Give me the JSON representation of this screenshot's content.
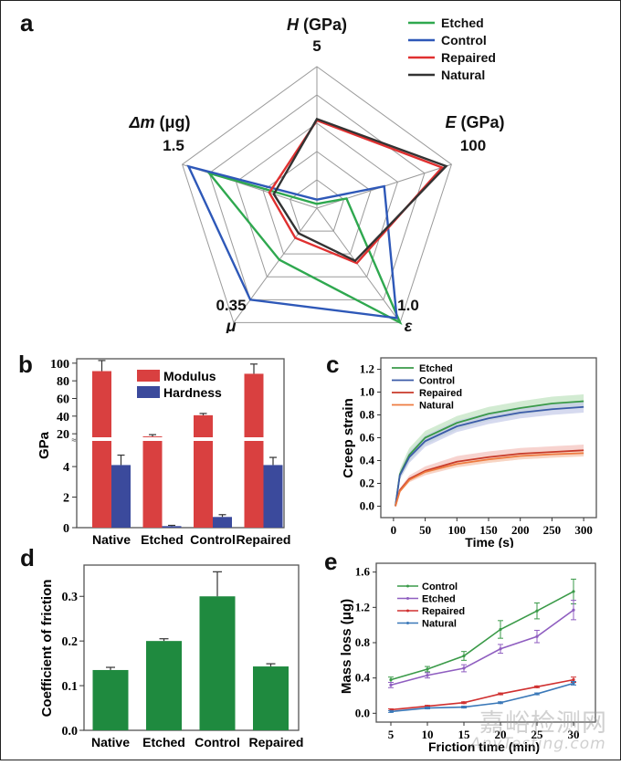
{
  "chart_data": [
    {
      "panel": "a",
      "type": "radar",
      "axes": [
        {
          "name": "H",
          "unit": "(GPa)",
          "max_label": "5",
          "max": 5
        },
        {
          "name": "E",
          "unit": "(GPa)",
          "max_label": "100",
          "max": 100
        },
        {
          "name": "ε",
          "unit": "",
          "max_label": "1.0",
          "max": 1.0
        },
        {
          "name": "μ",
          "unit": "",
          "max_label": "0.35",
          "max": 0.35
        },
        {
          "name": "Δm",
          "unit": "(μg)",
          "max_label": "1.5",
          "max": 1.5
        }
      ],
      "grid_rings": 5,
      "series": [
        {
          "name": "Etched",
          "color": "#2fa84f",
          "values": [
            0.15,
            22,
            1.0,
            0.158,
            1.2
          ]
        },
        {
          "name": "Control",
          "color": "#2e58b8",
          "values": [
            0.3,
            50,
            0.96,
            0.28,
            1.43
          ]
        },
        {
          "name": "Repaired",
          "color": "#e03030",
          "values": [
            3.1,
            93,
            0.48,
            0.091,
            0.53
          ]
        },
        {
          "name": "Natural",
          "color": "#333333",
          "values": [
            3.15,
            96,
            0.46,
            0.077,
            0.48
          ]
        }
      ],
      "legend": "top-right"
    },
    {
      "panel": "b",
      "type": "bar",
      "ylabel": "GPa",
      "categories": [
        "Native",
        "Etched",
        "Control",
        "Repaired"
      ],
      "series": [
        {
          "name": "Modulus",
          "color": "#d94040",
          "values": [
            91,
            17,
            41,
            88
          ],
          "errors": [
            12,
            2,
            2,
            11
          ]
        },
        {
          "name": "Hardness",
          "color": "#3b4a9c",
          "values": [
            4.1,
            0.1,
            0.7,
            4.1
          ],
          "errors": [
            0.65,
            0.05,
            0.15,
            0.5
          ]
        }
      ],
      "axis_break": true,
      "lower_ticks": [
        "0",
        "2",
        "4"
      ],
      "upper_ticks": [
        "20",
        "40",
        "60",
        "80",
        "100"
      ],
      "lower_range": [
        0,
        5.5
      ],
      "upper_range": [
        15,
        105
      ],
      "legend": "top-center"
    },
    {
      "panel": "c",
      "type": "line",
      "xlabel": "Time (s)",
      "ylabel": "Creep strain",
      "xlim": [
        -20,
        320
      ],
      "ylim": [
        -0.1,
        1.3
      ],
      "xticks": [
        "0",
        "50",
        "100",
        "150",
        "200",
        "250",
        "300"
      ],
      "yticks": [
        "0.0",
        "0.2",
        "0.4",
        "0.6",
        "0.8",
        "1.0",
        "1.2"
      ],
      "series": [
        {
          "name": "Etched",
          "color": "#3a9a48",
          "band": "#bfe3bf",
          "x": [
            3,
            10,
            25,
            50,
            100,
            150,
            200,
            250,
            300
          ],
          "y": [
            0.0,
            0.28,
            0.45,
            0.6,
            0.73,
            0.81,
            0.86,
            0.9,
            0.92
          ],
          "spread": 0.06
        },
        {
          "name": "Control",
          "color": "#3b5ba8",
          "band": "#c5cbe8",
          "x": [
            3,
            10,
            25,
            50,
            100,
            150,
            200,
            250,
            300
          ],
          "y": [
            0.0,
            0.27,
            0.43,
            0.57,
            0.7,
            0.77,
            0.82,
            0.85,
            0.87
          ],
          "spread": 0.05
        },
        {
          "name": "Repaired",
          "color": "#c83a2a",
          "band": "#f3c0bb",
          "x": [
            3,
            10,
            25,
            50,
            100,
            150,
            200,
            250,
            300
          ],
          "y": [
            0.0,
            0.14,
            0.24,
            0.31,
            0.39,
            0.43,
            0.46,
            0.475,
            0.49
          ],
          "spread": 0.05
        },
        {
          "name": "Natural",
          "color": "#ee7b40",
          "band": "#f8d6bd",
          "x": [
            3,
            10,
            25,
            50,
            100,
            150,
            200,
            250,
            300
          ],
          "y": [
            0.0,
            0.13,
            0.23,
            0.3,
            0.37,
            0.41,
            0.44,
            0.455,
            0.465
          ],
          "spread": 0.03
        }
      ],
      "legend": "top-left"
    },
    {
      "panel": "d",
      "type": "bar",
      "ylabel": "Coefficient of friction",
      "categories": [
        "Native",
        "Etched",
        "Control",
        "Repaired"
      ],
      "values": [
        0.135,
        0.2,
        0.3,
        0.143
      ],
      "errors": [
        0.006,
        0.005,
        0.055,
        0.006
      ],
      "color": "#1f8a3f",
      "ylim": [
        0,
        0.37
      ],
      "yticks": [
        "0.0",
        "0.1",
        "0.2",
        "0.3"
      ]
    },
    {
      "panel": "e",
      "type": "line",
      "xlabel": "Friction time (min)",
      "ylabel": "Mass loss (μg)",
      "x": [
        5,
        10,
        15,
        20,
        25,
        30
      ],
      "xticks": [
        "5",
        "10",
        "15",
        "20",
        "25",
        "30"
      ],
      "yticks": [
        "0.0",
        "0.4",
        "0.8",
        "1.2",
        "1.6"
      ],
      "ylim": [
        -0.1,
        1.7
      ],
      "xlim": [
        3,
        33
      ],
      "series": [
        {
          "name": "Control",
          "color": "#3a9a48",
          "values": [
            0.38,
            0.5,
            0.65,
            0.95,
            1.16,
            1.38
          ],
          "errors": [
            0.03,
            0.03,
            0.05,
            0.1,
            0.09,
            0.14
          ]
        },
        {
          "name": "Etched",
          "color": "#8f5ec0",
          "values": [
            0.32,
            0.43,
            0.51,
            0.73,
            0.87,
            1.17
          ],
          "errors": [
            0.03,
            0.03,
            0.04,
            0.05,
            0.07,
            0.11
          ]
        },
        {
          "name": "Repaired",
          "color": "#d03030",
          "values": [
            0.04,
            0.08,
            0.12,
            0.22,
            0.3,
            0.38
          ],
          "errors": [
            0.01,
            0.01,
            0.01,
            0.01,
            0.01,
            0.03
          ]
        },
        {
          "name": "Natural",
          "color": "#3a78b8",
          "values": [
            0.02,
            0.06,
            0.07,
            0.12,
            0.22,
            0.34
          ],
          "errors": [
            0.01,
            0.01,
            0.01,
            0.01,
            0.01,
            0.02
          ]
        }
      ],
      "legend": "top-left"
    }
  ],
  "panel_labels": [
    "a",
    "b",
    "c",
    "d",
    "e"
  ],
  "watermark": {
    "cn": "嘉峪检测网",
    "en": "AnyTesting.com"
  }
}
